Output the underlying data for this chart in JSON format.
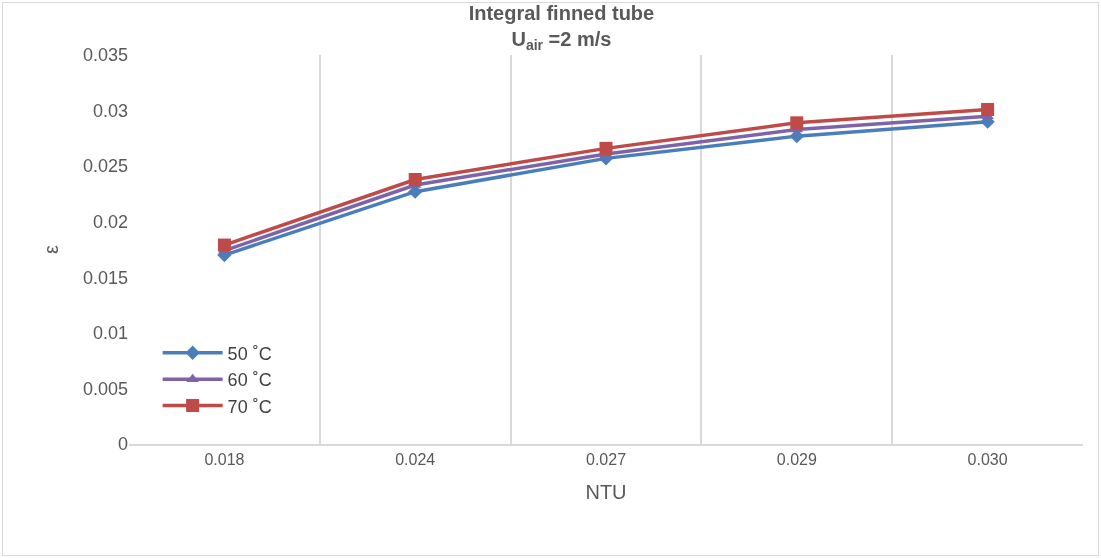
{
  "chart_data": {
    "type": "line",
    "title": "Integral finned tube",
    "subtitle": "U$_{air}$ =2 m/s",
    "xlabel": "NTU",
    "ylabel": "ε",
    "categories": [
      "0.018",
      "0.024",
      "0.027",
      "0.029",
      "0.030"
    ],
    "series": [
      {
        "name": "50 ˚C",
        "color": "#4a7ebb",
        "marker": "diamond",
        "values": [
          0.017,
          0.0227,
          0.0257,
          0.0277,
          0.029
        ]
      },
      {
        "name": "60 ˚C",
        "color": "#7f63a7",
        "marker": "triangle",
        "values": [
          0.0174,
          0.0233,
          0.0261,
          0.0283,
          0.0295
        ]
      },
      {
        "name": "70 ˚C",
        "color": "#be4b48",
        "marker": "square",
        "values": [
          0.0179,
          0.0238,
          0.0266,
          0.0289,
          0.0301
        ]
      }
    ],
    "ylim": [
      0,
      0.035
    ],
    "yticks": [
      0,
      0.005,
      0.01,
      0.015,
      0.02,
      0.025,
      0.03,
      0.035
    ],
    "grid": "x",
    "legend": "bottom left",
    "line_style": "solid"
  }
}
